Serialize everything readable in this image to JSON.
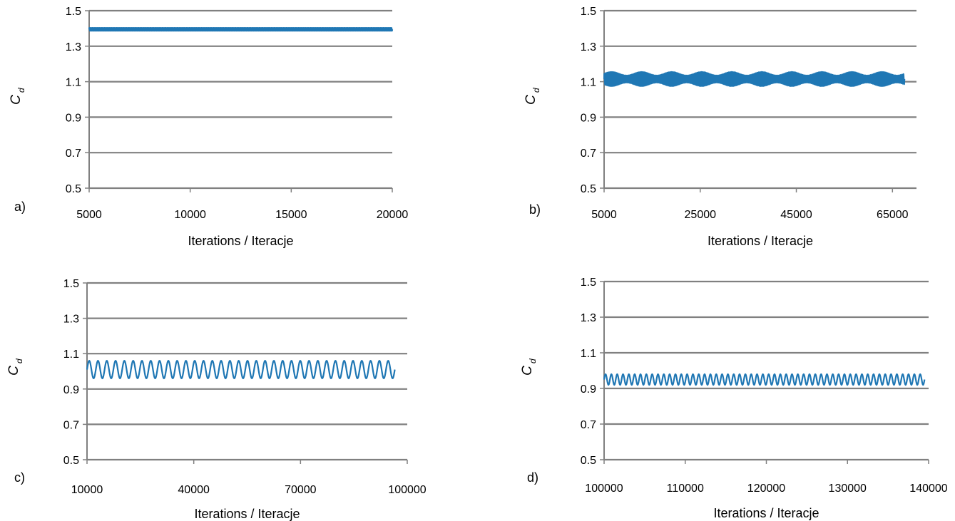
{
  "figure": {
    "background": "#ffffff",
    "grid_color": "#808080",
    "axis_color": "#808080",
    "series_color": "#1f77b4"
  },
  "chart_data": [
    {
      "type": "line",
      "panel_label": "a)",
      "xlabel": "Iterations / Iteracje",
      "ylabel": "C",
      "ylabel_subscript": "d",
      "xlim": [
        5000,
        20000
      ],
      "ylim": [
        0.5,
        1.5
      ],
      "xticks": [
        "5000",
        "10000",
        "15000",
        "20000"
      ],
      "yticks": [
        "0.5",
        "0.7",
        "0.9",
        "1.1",
        "1.3",
        "1.5"
      ],
      "grid": true,
      "series": [
        {
          "mean": 1.395,
          "amplitude": 0.008,
          "x_start": 5000,
          "x_end": 20000,
          "cycles": 300
        }
      ]
    },
    {
      "type": "line",
      "panel_label": "b)",
      "xlabel": "Iterations / Iteracje",
      "ylabel": "C",
      "ylabel_subscript": "d",
      "xlim": [
        5000,
        70000
      ],
      "ylim": [
        0.5,
        1.5
      ],
      "xticks": [
        "5000",
        "25000",
        "45000",
        "65000"
      ],
      "yticks": [
        "0.5",
        "0.7",
        "0.9",
        "1.1",
        "1.3",
        "1.5"
      ],
      "grid": true,
      "series": [
        {
          "mean": 1.115,
          "amplitude": 0.03,
          "x_start": 5000,
          "x_end": 67500,
          "cycles": 220,
          "envelope_amplitude": 0.01,
          "envelope_cycles": 10
        }
      ]
    },
    {
      "type": "line",
      "panel_label": "c)",
      "xlabel": "Iterations / Iteracje",
      "ylabel": "C",
      "ylabel_subscript": "d",
      "xlim": [
        10000,
        100000
      ],
      "ylim": [
        0.5,
        1.5
      ],
      "xticks": [
        "10000",
        "40000",
        "70000",
        "100000"
      ],
      "yticks": [
        "0.5",
        "0.7",
        "0.9",
        "1.1",
        "1.3",
        "1.5"
      ],
      "grid": true,
      "series": [
        {
          "mean": 1.01,
          "amplitude": 0.05,
          "x_start": 10000,
          "x_end": 96500,
          "cycles": 35
        }
      ]
    },
    {
      "type": "line",
      "panel_label": "d)",
      "xlabel": "Iterations / Iteracje",
      "ylabel": "C",
      "ylabel_subscript": "d",
      "xlim": [
        100000,
        140000
      ],
      "ylim": [
        0.5,
        1.5
      ],
      "xticks": [
        "100000",
        "110000",
        "120000",
        "130000",
        "140000"
      ],
      "yticks": [
        "0.5",
        "0.7",
        "0.9",
        "1.1",
        "1.3",
        "1.5"
      ],
      "grid": true,
      "series": [
        {
          "mean": 0.95,
          "amplitude": 0.03,
          "x_start": 100000,
          "x_end": 139500,
          "cycles": 55
        }
      ]
    }
  ]
}
